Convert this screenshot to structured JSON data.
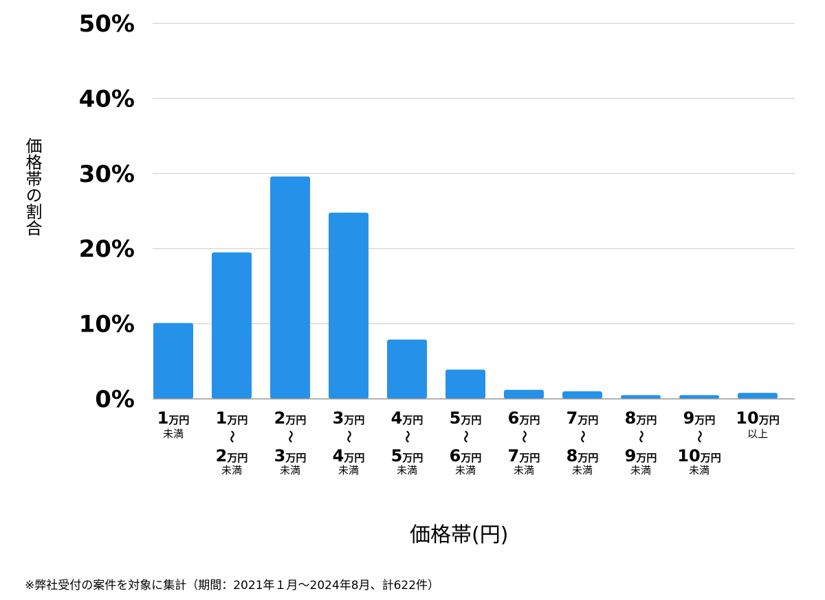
{
  "chart_data": {
    "type": "bar",
    "title": "",
    "xlabel": "価格帯(円)",
    "ylabel": "価格帯の割合",
    "ylim": [
      0,
      50
    ],
    "yticks": [
      "0%",
      "10%",
      "20%",
      "30%",
      "40%",
      "50%"
    ],
    "grid": true,
    "categories": [
      {
        "top": "1",
        "unit": "万円",
        "bottom": null,
        "bottom_unit": null,
        "note": "未満",
        "sep": null
      },
      {
        "top": "1",
        "unit": "万円",
        "bottom": "2",
        "bottom_unit": "万円",
        "note": "未満",
        "sep": "〜"
      },
      {
        "top": "2",
        "unit": "万円",
        "bottom": "3",
        "bottom_unit": "万円",
        "note": "未満",
        "sep": "〜"
      },
      {
        "top": "3",
        "unit": "万円",
        "bottom": "4",
        "bottom_unit": "万円",
        "note": "未満",
        "sep": "〜"
      },
      {
        "top": "4",
        "unit": "万円",
        "bottom": "5",
        "bottom_unit": "万円",
        "note": "未満",
        "sep": "〜"
      },
      {
        "top": "5",
        "unit": "万円",
        "bottom": "6",
        "bottom_unit": "万円",
        "note": "未満",
        "sep": "〜"
      },
      {
        "top": "6",
        "unit": "万円",
        "bottom": "7",
        "bottom_unit": "万円",
        "note": "未満",
        "sep": "〜"
      },
      {
        "top": "7",
        "unit": "万円",
        "bottom": "8",
        "bottom_unit": "万円",
        "note": "未満",
        "sep": "〜"
      },
      {
        "top": "8",
        "unit": "万円",
        "bottom": "9",
        "bottom_unit": "万円",
        "note": "未満",
        "sep": "〜"
      },
      {
        "top": "9",
        "unit": "万円",
        "bottom": "10",
        "bottom_unit": "万円",
        "note": "未満",
        "sep": "〜"
      },
      {
        "top": "10",
        "unit": "万円",
        "bottom": null,
        "bottom_unit": null,
        "note": "以上",
        "sep": null
      }
    ],
    "values": [
      10.1,
      19.5,
      29.6,
      24.8,
      7.9,
      3.9,
      1.2,
      1.0,
      0.5,
      0.5,
      0.8
    ],
    "bar_color": "#2591E8",
    "grid_color": "#C8C8C8",
    "axis_color": "#999999"
  },
  "footnote": "※弊社受付の案件を対象に集計（期間：2021年１月〜2024年8月、計622件）"
}
